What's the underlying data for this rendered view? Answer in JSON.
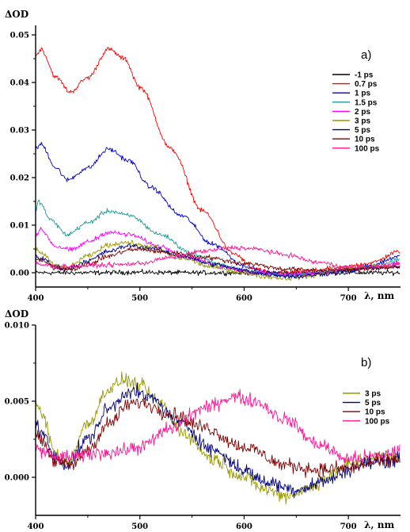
{
  "chart_data": [
    {
      "type": "line",
      "panel_label": "a)",
      "ylabel": "ΔOD",
      "xlabel": "λ, nm",
      "xlim": [
        400,
        750
      ],
      "ylim": [
        -0.003,
        0.052
      ],
      "xticks": [
        400,
        500,
        600,
        700
      ],
      "xtick_labels": [
        "400",
        "500",
        "600",
        "700"
      ],
      "yticks": [
        0.0,
        0.01,
        0.02,
        0.03,
        0.04,
        0.05
      ],
      "ytick_labels": [
        "0.00",
        "0.01",
        "0.02",
        "0.03",
        "0.04",
        "0.05"
      ],
      "legend_position": "right",
      "grid": false,
      "series": [
        {
          "name": "-1 ps",
          "color": "#000000",
          "x": [
            400,
            450,
            500,
            550,
            600,
            650,
            700,
            750
          ],
          "y": [
            0.0,
            0.0,
            0.0001,
            0.0,
            0.0,
            0.0,
            0.0,
            0.0
          ]
        },
        {
          "name": "0.7 ps",
          "color": "#ff0000",
          "x": [
            400,
            405,
            420,
            433,
            450,
            470,
            485,
            500,
            530,
            560,
            590,
            610,
            625,
            640,
            660,
            690,
            720,
            750
          ],
          "y": [
            0.0455,
            0.047,
            0.041,
            0.038,
            0.041,
            0.047,
            0.045,
            0.039,
            0.026,
            0.013,
            0.004,
            0.0008,
            0.0,
            0.0,
            0.0004,
            0.001,
            0.002,
            0.0045
          ]
        },
        {
          "name": "1 ps",
          "color": "#0000cc",
          "x": [
            400,
            405,
            420,
            430,
            450,
            470,
            490,
            510,
            540,
            570,
            600,
            620,
            650,
            680,
            700,
            720,
            750
          ],
          "y": [
            0.026,
            0.027,
            0.022,
            0.0195,
            0.022,
            0.026,
            0.0235,
            0.018,
            0.012,
            0.006,
            0.0015,
            0.0,
            -0.0005,
            0.0,
            0.0005,
            0.0015,
            0.0035
          ]
        },
        {
          "name": "1.5 ps",
          "color": "#1a9999",
          "x": [
            400,
            403,
            415,
            430,
            450,
            470,
            490,
            520,
            550,
            580,
            610,
            640,
            670,
            700,
            730,
            750
          ],
          "y": [
            0.013,
            0.015,
            0.011,
            0.008,
            0.0105,
            0.013,
            0.012,
            0.008,
            0.004,
            0.0015,
            0.0,
            -0.0005,
            0.0,
            0.0008,
            0.0015,
            0.003
          ]
        },
        {
          "name": "2 ps",
          "color": "#ff00ff",
          "x": [
            400,
            405,
            420,
            435,
            450,
            470,
            490,
            520,
            550,
            580,
            610,
            640,
            670,
            700,
            730,
            750
          ],
          "y": [
            0.008,
            0.009,
            0.0055,
            0.0048,
            0.0065,
            0.0085,
            0.008,
            0.0055,
            0.003,
            0.0012,
            0.0,
            -0.0005,
            0.0,
            0.0008,
            0.0012,
            0.002
          ]
        },
        {
          "name": "3 ps",
          "color": "#999900",
          "x": [
            400,
            405,
            420,
            430,
            450,
            470,
            485,
            510,
            540,
            570,
            600,
            620,
            640,
            660,
            680,
            700,
            720,
            750
          ],
          "y": [
            0.005,
            0.0042,
            0.0015,
            0.001,
            0.0035,
            0.0058,
            0.0064,
            0.0055,
            0.003,
            0.0012,
            0.0,
            -0.0008,
            -0.0012,
            -0.0008,
            0.0,
            0.0008,
            0.0013,
            0.0013
          ]
        },
        {
          "name": "5 ps",
          "color": "#000080",
          "x": [
            400,
            405,
            420,
            430,
            450,
            470,
            490,
            510,
            540,
            570,
            600,
            620,
            650,
            680,
            700,
            720,
            750
          ],
          "y": [
            0.0035,
            0.003,
            0.0012,
            0.0008,
            0.0025,
            0.0045,
            0.0057,
            0.0052,
            0.0035,
            0.0018,
            0.0005,
            -0.0003,
            -0.0008,
            -0.0002,
            0.0005,
            0.001,
            0.0012
          ]
        },
        {
          "name": "10 ps",
          "color": "#800000",
          "x": [
            400,
            405,
            420,
            435,
            450,
            470,
            490,
            500,
            530,
            560,
            600,
            640,
            670,
            700,
            730,
            750
          ],
          "y": [
            0.003,
            0.0025,
            0.001,
            0.0008,
            0.0018,
            0.0035,
            0.0048,
            0.0049,
            0.0042,
            0.0033,
            0.002,
            0.0008,
            0.0005,
            0.0006,
            0.001,
            0.0012
          ]
        },
        {
          "name": "100 ps",
          "color": "#ff1493",
          "x": [
            400,
            405,
            420,
            440,
            460,
            480,
            500,
            530,
            560,
            590,
            610,
            640,
            670,
            700,
            730,
            750
          ],
          "y": [
            0.002,
            0.0017,
            0.0013,
            0.0014,
            0.0016,
            0.0017,
            0.002,
            0.0032,
            0.0045,
            0.0053,
            0.005,
            0.0038,
            0.0022,
            0.0012,
            0.0014,
            0.0018
          ]
        }
      ]
    },
    {
      "type": "line",
      "panel_label": "b)",
      "ylabel": "ΔOD",
      "xlabel": "λ, nm",
      "xlim": [
        400,
        750
      ],
      "ylim": [
        -0.0025,
        0.01
      ],
      "xticks": [
        400,
        500,
        600,
        700
      ],
      "xtick_labels": [
        "400",
        "500",
        "600",
        "700"
      ],
      "yticks": [
        0.0,
        0.005,
        0.01
      ],
      "ytick_labels": [
        "0.000",
        "0.005",
        "0.010"
      ],
      "legend_position": "top-right",
      "grid": false,
      "series": [
        {
          "name": "3 ps",
          "color": "#999900",
          "x": [
            400,
            405,
            420,
            430,
            450,
            470,
            485,
            500,
            520,
            540,
            570,
            600,
            620,
            640,
            660,
            680,
            700,
            720,
            750
          ],
          "y": [
            0.005,
            0.0042,
            0.0015,
            0.001,
            0.0035,
            0.0058,
            0.0064,
            0.006,
            0.0048,
            0.003,
            0.0012,
            0.0,
            -0.0008,
            -0.0012,
            -0.0008,
            0.0,
            0.0008,
            0.0013,
            0.0013
          ]
        },
        {
          "name": "5 ps",
          "color": "#000080",
          "x": [
            400,
            405,
            420,
            430,
            450,
            470,
            490,
            510,
            540,
            570,
            600,
            620,
            650,
            680,
            700,
            720,
            750
          ],
          "y": [
            0.0035,
            0.003,
            0.0012,
            0.0008,
            0.0025,
            0.0045,
            0.0057,
            0.0052,
            0.0035,
            0.0018,
            0.0005,
            -0.0003,
            -0.0008,
            -0.0002,
            0.0005,
            0.001,
            0.0012
          ]
        },
        {
          "name": "10 ps",
          "color": "#800000",
          "x": [
            400,
            405,
            420,
            435,
            450,
            470,
            490,
            500,
            530,
            560,
            600,
            640,
            670,
            700,
            730,
            750
          ],
          "y": [
            0.003,
            0.0025,
            0.001,
            0.0008,
            0.0018,
            0.0035,
            0.0048,
            0.0049,
            0.0042,
            0.0033,
            0.002,
            0.0008,
            0.0005,
            0.0006,
            0.001,
            0.0012
          ]
        },
        {
          "name": "100 ps",
          "color": "#ff1493",
          "x": [
            400,
            405,
            420,
            440,
            460,
            480,
            500,
            530,
            560,
            590,
            610,
            640,
            670,
            700,
            730,
            750
          ],
          "y": [
            0.002,
            0.0017,
            0.0013,
            0.0014,
            0.0016,
            0.0017,
            0.002,
            0.0032,
            0.0045,
            0.0053,
            0.005,
            0.0038,
            0.0022,
            0.0012,
            0.0014,
            0.0018
          ]
        }
      ]
    }
  ]
}
